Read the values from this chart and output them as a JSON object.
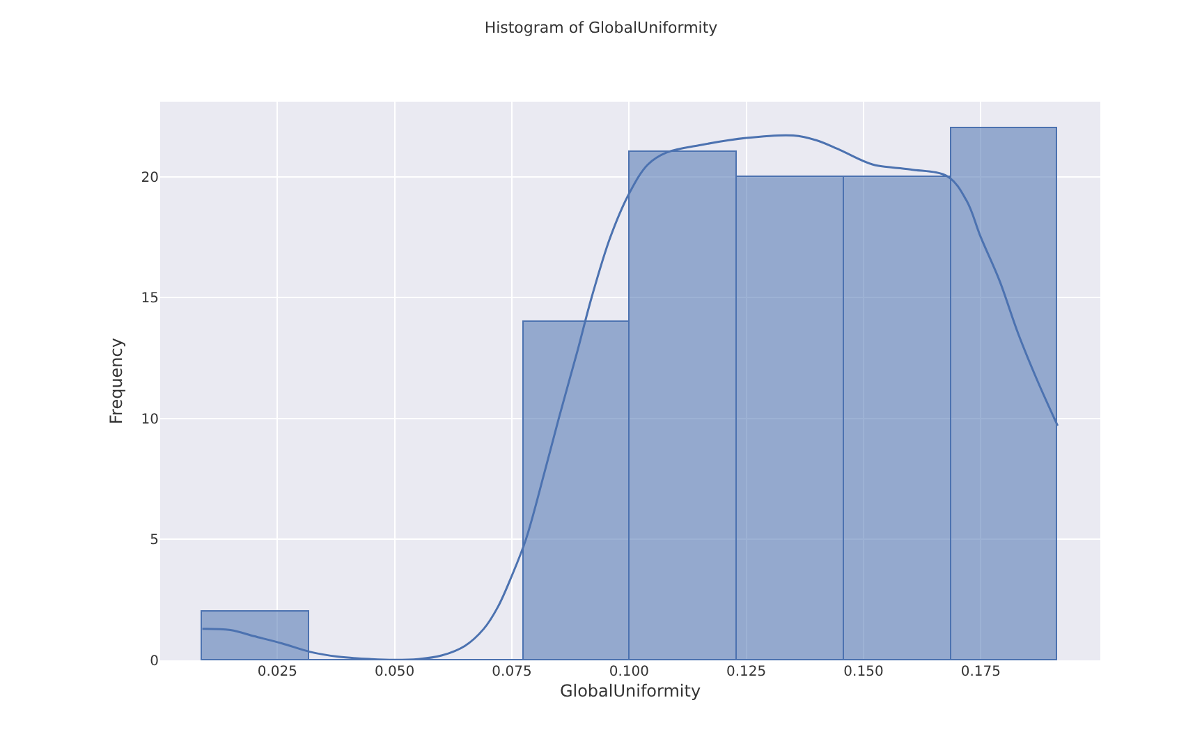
{
  "chart_data": {
    "type": "histogram",
    "title": "Histogram of GlobalUniformity",
    "xlabel": "GlobalUniformity",
    "ylabel": "Frequency",
    "series": [
      {
        "color": "#4c72b0",
        "bins": [
          0.009,
          0.0318,
          0.0546,
          0.0774,
          0.1002,
          0.123,
          0.1458,
          0.1686,
          0.1914
        ],
        "values": [
          2,
          0,
          0,
          14,
          21,
          20,
          20,
          22
        ]
      },
      {
        "type": "line",
        "color": "#4c72b0",
        "x": [
          0.009,
          0.015,
          0.02,
          0.026,
          0.032,
          0.038,
          0.045,
          0.05,
          0.055,
          0.06,
          0.065,
          0.069,
          0.072,
          0.075,
          0.078,
          0.082,
          0.085,
          0.089,
          0.092,
          0.096,
          0.1,
          0.104,
          0.108,
          0.115,
          0.125,
          0.135,
          0.14,
          0.145,
          0.152,
          0.16,
          0.168,
          0.172,
          0.175,
          0.179,
          0.183,
          0.187,
          0.1914
        ],
        "values": [
          1.3,
          1.25,
          1.0,
          0.7,
          0.35,
          0.15,
          0.05,
          0.02,
          0.05,
          0.2,
          0.6,
          1.3,
          2.2,
          3.5,
          5.0,
          7.8,
          10.0,
          12.8,
          15.0,
          17.5,
          19.3,
          20.5,
          21.0,
          21.3,
          21.6,
          21.7,
          21.5,
          21.1,
          20.5,
          20.3,
          20.0,
          19.0,
          17.5,
          15.7,
          13.5,
          11.6,
          9.7
        ]
      }
    ],
    "xlim": [
      0.0,
      0.2005
    ],
    "ylim": [
      0,
      23.1
    ],
    "xticks": [
      0.025,
      {
        "value": 0.05,
        "label": "0.050"
      },
      0.075,
      {
        "value": 0.1,
        "label": "0.100"
      },
      0.125,
      {
        "value": 0.15,
        "label": "0.150"
      },
      0.175
    ],
    "yticks": [
      0,
      5,
      10,
      15,
      20
    ],
    "grid": true
  }
}
